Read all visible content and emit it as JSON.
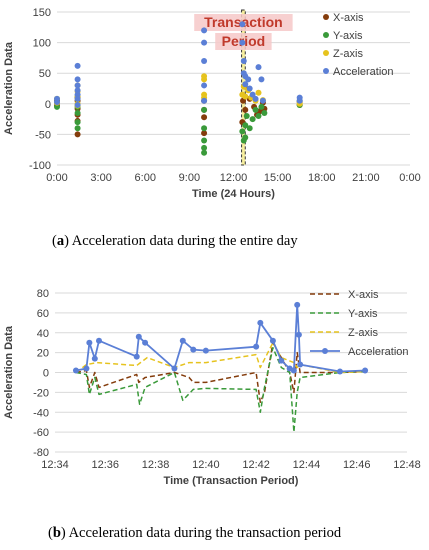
{
  "captions": [
    {
      "letter": "a",
      "text": " Acceleration data during the entire day"
    },
    {
      "letter": "b",
      "text": " Acceleration data during the transaction period"
    }
  ],
  "chart_data": [
    {
      "type": "scatter",
      "xlabel": "Time (24 Hours)",
      "ylabel": "Acceleration Data",
      "xlim": [
        0,
        24
      ],
      "ylim": [
        -100,
        150
      ],
      "x_ticks": [
        "0:00",
        "3:00",
        "6:00",
        "9:00",
        "12:00",
        "15:00",
        "18:00",
        "21:00",
        "0:00"
      ],
      "y_ticks": [
        "-100",
        "-50",
        "0",
        "50",
        "100",
        "150"
      ],
      "grid": true,
      "legend_position": "right",
      "annotation": {
        "text": [
          "Transaction",
          "Period"
        ],
        "color": "#c0392b",
        "highlight": "#f6c8c8",
        "x_range": [
          12.55,
          12.8
        ]
      },
      "series": [
        {
          "name": "X-axis",
          "color": "#843c0c",
          "points": [
            [
              0,
              2
            ],
            [
              0,
              -3
            ],
            [
              0,
              5
            ],
            [
              1.4,
              -50
            ],
            [
              1.4,
              -28
            ],
            [
              1.4,
              -8
            ],
            [
              1.4,
              5
            ],
            [
              1.4,
              -18
            ],
            [
              1.4,
              10
            ],
            [
              10,
              -48
            ],
            [
              10,
              5
            ],
            [
              10,
              -10
            ],
            [
              10,
              -22
            ],
            [
              12.6,
              -30
            ],
            [
              12.65,
              5
            ],
            [
              12.75,
              28
            ],
            [
              12.8,
              -10
            ],
            [
              13.1,
              8
            ],
            [
              13.4,
              -5
            ],
            [
              13.6,
              -18
            ],
            [
              13.8,
              -12
            ],
            [
              14,
              2
            ],
            [
              14.1,
              -8
            ],
            [
              16.5,
              3
            ],
            [
              16.5,
              -2
            ]
          ]
        },
        {
          "name": "Y-axis",
          "color": "#3a9a3a",
          "points": [
            [
              0,
              -5
            ],
            [
              0,
              8
            ],
            [
              0,
              3
            ],
            [
              1.4,
              -30
            ],
            [
              1.4,
              -5
            ],
            [
              1.4,
              -40
            ],
            [
              1.4,
              -15
            ],
            [
              1.4,
              12
            ],
            [
              10,
              -72
            ],
            [
              10,
              -80
            ],
            [
              10,
              -60
            ],
            [
              10,
              -40
            ],
            [
              10,
              -10
            ],
            [
              12.6,
              -45
            ],
            [
              12.7,
              -60
            ],
            [
              12.8,
              -35
            ],
            [
              12.8,
              -55
            ],
            [
              12.9,
              -20
            ],
            [
              13.1,
              -40
            ],
            [
              13.3,
              -25
            ],
            [
              13.5,
              -10
            ],
            [
              13.7,
              -20
            ],
            [
              13.9,
              -5
            ],
            [
              14.1,
              -15
            ],
            [
              16.5,
              -2
            ],
            [
              16.5,
              5
            ]
          ]
        },
        {
          "name": "Z-axis",
          "color": "#e6c31e",
          "points": [
            [
              0,
              8
            ],
            [
              0,
              2
            ],
            [
              1.4,
              20
            ],
            [
              1.4,
              12
            ],
            [
              1.4,
              0
            ],
            [
              1.4,
              30
            ],
            [
              1.4,
              -3
            ],
            [
              10,
              45
            ],
            [
              10,
              40
            ],
            [
              10,
              15
            ],
            [
              10,
              10
            ],
            [
              12.6,
              15
            ],
            [
              12.7,
              28
            ],
            [
              12.8,
              12
            ],
            [
              13,
              22
            ],
            [
              13.2,
              10
            ],
            [
              13.5,
              5
            ],
            [
              13.7,
              18
            ],
            [
              14,
              6
            ],
            [
              16.5,
              0
            ]
          ]
        },
        {
          "name": "Acceleration",
          "color": "#5b7fd6",
          "points": [
            [
              0,
              3
            ],
            [
              0,
              8
            ],
            [
              1.4,
              62
            ],
            [
              1.4,
              40
            ],
            [
              1.4,
              30
            ],
            [
              1.4,
              22
            ],
            [
              1.4,
              15
            ],
            [
              1.4,
              8
            ],
            [
              1.4,
              -2
            ],
            [
              10,
              120
            ],
            [
              10,
              100
            ],
            [
              10,
              70
            ],
            [
              10,
              30
            ],
            [
              10,
              5
            ],
            [
              12.6,
              130
            ],
            [
              12.6,
              100
            ],
            [
              12.7,
              70
            ],
            [
              12.7,
              50
            ],
            [
              12.8,
              45
            ],
            [
              12.8,
              32
            ],
            [
              13,
              40
            ],
            [
              13.1,
              25
            ],
            [
              13.3,
              15
            ],
            [
              13.5,
              8
            ],
            [
              13.7,
              60
            ],
            [
              13.9,
              40
            ],
            [
              14,
              5
            ],
            [
              16.5,
              10
            ],
            [
              16.5,
              5
            ]
          ]
        }
      ]
    },
    {
      "type": "line",
      "xlabel": "Time (Transaction Period)",
      "ylabel": "Acceleration Data",
      "xlim": [
        "12:34",
        "12:48"
      ],
      "ylim": [
        -80,
        80
      ],
      "x_ticks": [
        "12:34",
        "12:36",
        "12:38",
        "12:40",
        "12:42",
        "12:44",
        "12:46",
        "12:48"
      ],
      "y_ticks": [
        "-80",
        "-60",
        "-40",
        "-20",
        "0",
        "20",
        "40",
        "60",
        "80"
      ],
      "grid": true,
      "legend_position": "right",
      "series": [
        {
          "name": "X-axis",
          "color": "#843c0c",
          "dash": "5,3",
          "width": 1.5,
          "marker": false,
          "points": [
            [
              "12:34:50",
              0
            ],
            [
              "12:35:15",
              2
            ],
            [
              "12:35:22",
              -15
            ],
            [
              "12:35:35",
              0
            ],
            [
              "12:35:45",
              -15
            ],
            [
              "12:37:15",
              -2
            ],
            [
              "12:37:20",
              -10
            ],
            [
              "12:37:35",
              -5
            ],
            [
              "12:38:45",
              0
            ],
            [
              "12:39:20",
              -5
            ],
            [
              "12:39:30",
              -10
            ],
            [
              "12:40:00",
              -10
            ],
            [
              "12:42:00",
              0
            ],
            [
              "12:42:10",
              -30
            ],
            [
              "12:42:20",
              -20
            ],
            [
              "12:42:40",
              30
            ],
            [
              "12:43:00",
              15
            ],
            [
              "12:43:20",
              0
            ],
            [
              "12:43:30",
              -20
            ],
            [
              "12:43:38",
              20
            ],
            [
              "12:43:45",
              0
            ],
            [
              "12:45:20",
              0
            ],
            [
              "12:46:20",
              1
            ]
          ]
        },
        {
          "name": "Y-axis",
          "color": "#3a9a3a",
          "dash": "5,3",
          "width": 1.5,
          "marker": false,
          "points": [
            [
              "12:34:50",
              0
            ],
            [
              "12:35:15",
              -2
            ],
            [
              "12:35:22",
              -22
            ],
            [
              "12:35:35",
              -5
            ],
            [
              "12:35:45",
              -22
            ],
            [
              "12:37:15",
              -12
            ],
            [
              "12:37:22",
              -32
            ],
            [
              "12:37:35",
              -15
            ],
            [
              "12:38:45",
              0
            ],
            [
              "12:39:05",
              -28
            ],
            [
              "12:39:30",
              -17
            ],
            [
              "12:40:00",
              -16
            ],
            [
              "12:42:00",
              -17
            ],
            [
              "12:42:10",
              -40
            ],
            [
              "12:42:20",
              -15
            ],
            [
              "12:42:40",
              25
            ],
            [
              "12:43:00",
              5
            ],
            [
              "12:43:20",
              0
            ],
            [
              "12:43:30",
              -60
            ],
            [
              "12:43:38",
              -20
            ],
            [
              "12:43:45",
              -5
            ],
            [
              "12:45:20",
              0
            ],
            [
              "12:46:20",
              1
            ]
          ]
        },
        {
          "name": "Z-axis",
          "color": "#e6c31e",
          "dash": "5,3",
          "width": 1.5,
          "marker": false,
          "points": [
            [
              "12:34:50",
              0
            ],
            [
              "12:35:15",
              8
            ],
            [
              "12:35:40",
              10
            ],
            [
              "12:37:15",
              7
            ],
            [
              "12:37:40",
              15
            ],
            [
              "12:38:45",
              5
            ],
            [
              "12:39:20",
              10
            ],
            [
              "12:40:00",
              10
            ],
            [
              "12:42:00",
              18
            ],
            [
              "12:42:10",
              5
            ],
            [
              "12:42:40",
              30
            ],
            [
              "12:43:00",
              15
            ],
            [
              "12:43:30",
              10
            ],
            [
              "12:43:38",
              5
            ],
            [
              "12:43:45",
              8
            ],
            [
              "12:45:20",
              0
            ],
            [
              "12:46:20",
              1
            ]
          ]
        },
        {
          "name": "Acceleration",
          "color": "#5b7fd6",
          "dash": "",
          "width": 1.8,
          "marker": true,
          "points": [
            [
              "12:34:50",
              2
            ],
            [
              "12:35:15",
              4
            ],
            [
              "12:35:22",
              30
            ],
            [
              "12:35:35",
              14
            ],
            [
              "12:35:45",
              32
            ],
            [
              "12:37:15",
              16
            ],
            [
              "12:37:20",
              36
            ],
            [
              "12:37:35",
              30
            ],
            [
              "12:38:45",
              4
            ],
            [
              "12:39:05",
              32
            ],
            [
              "12:39:30",
              23
            ],
            [
              "12:40:00",
              22
            ],
            [
              "12:42:00",
              26
            ],
            [
              "12:42:10",
              50
            ],
            [
              "12:42:40",
              32
            ],
            [
              "12:43:00",
              12
            ],
            [
              "12:43:20",
              4
            ],
            [
              "12:43:30",
              2
            ],
            [
              "12:43:38",
              68
            ],
            [
              "12:43:42",
              38
            ],
            [
              "12:43:45",
              8
            ],
            [
              "12:45:20",
              1
            ],
            [
              "12:46:20",
              2
            ]
          ]
        }
      ]
    }
  ]
}
